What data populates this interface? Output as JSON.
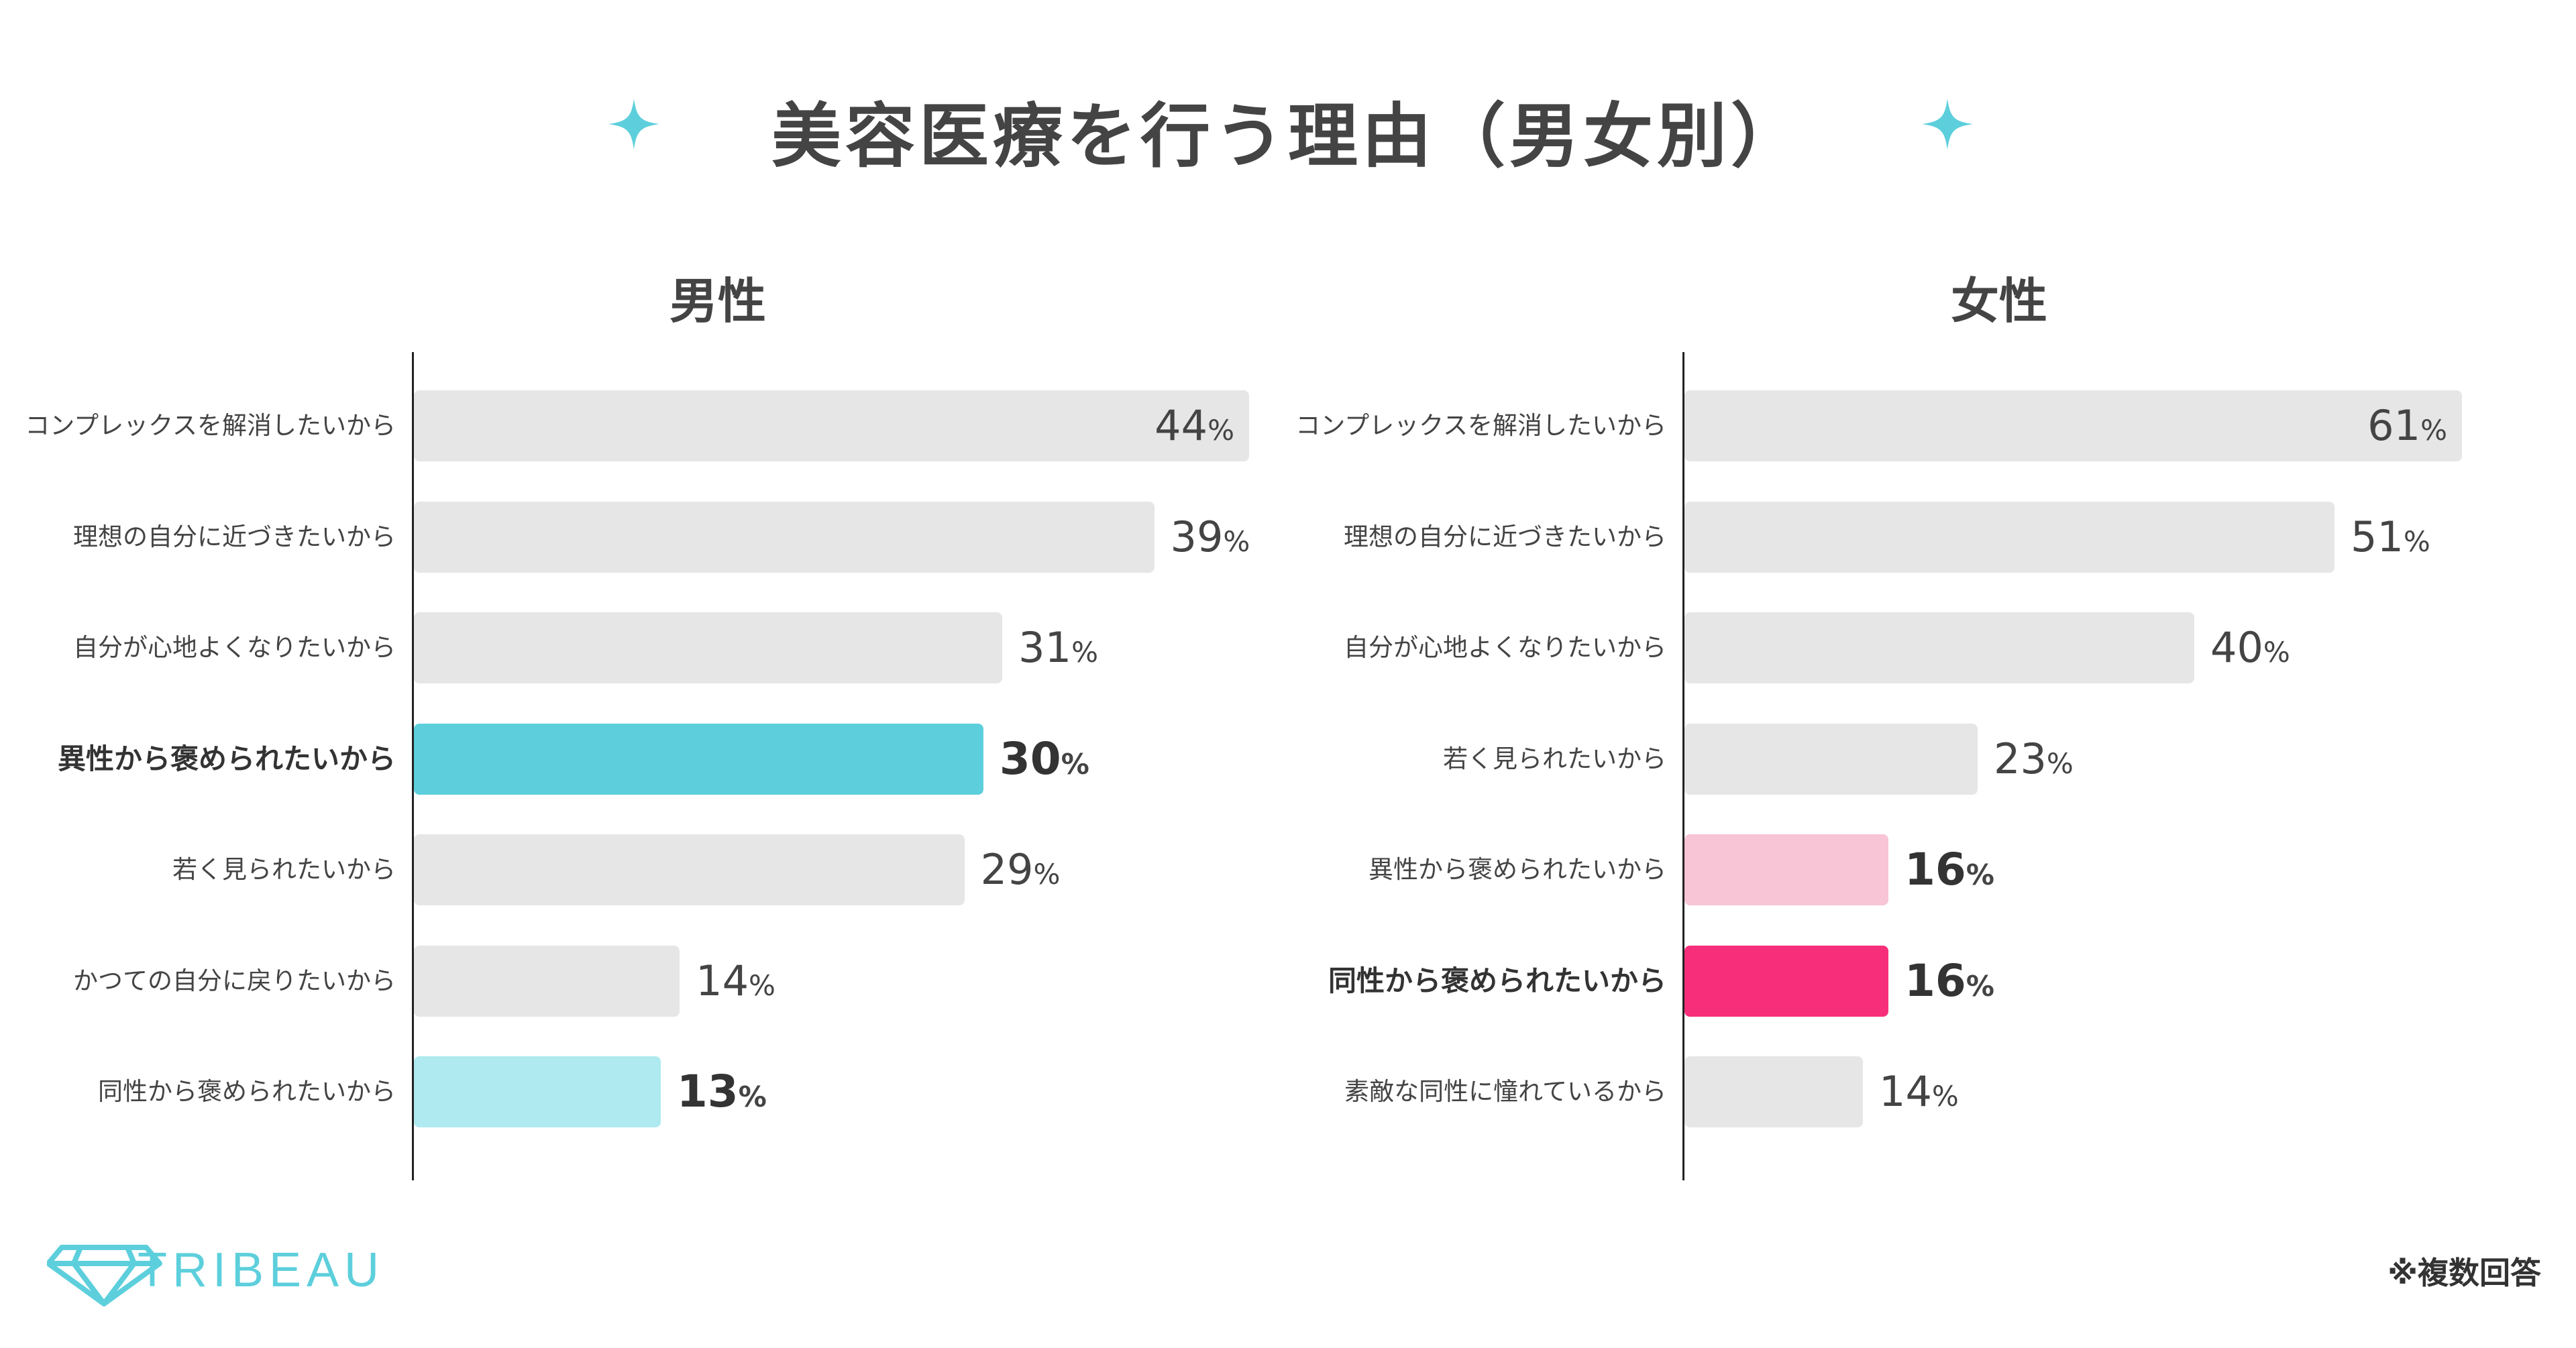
{
  "title": "美容医療を行う理由（男女別）",
  "footnote": "※複数回答",
  "brand": "TRIBEAU",
  "colors": {
    "sparkle": "#5dcfdc",
    "bar_default": "#e6e6e6",
    "male_highlight": "#5dcfdc",
    "male_light": "#aeeaf0",
    "female_highlight": "#f72f7a",
    "female_light": "#f7c5d6",
    "brand": "#5dcfdc"
  },
  "chart_data": [
    {
      "type": "bar",
      "orientation": "horizontal",
      "title": "男性",
      "unit": "%",
      "categories": [
        "コンプレックスを解消したいから",
        "理想の自分に近づきたいから",
        "自分が心地よくなりたいから",
        "異性から褒められたいから",
        "若く見られたいから",
        "かつての自分に戻りたいから",
        "同性から褒められたいから"
      ],
      "values": [
        44,
        39,
        31,
        30,
        29,
        14,
        13
      ],
      "highlight": [
        null,
        null,
        null,
        "strong",
        null,
        null,
        "light"
      ],
      "xlim": [
        0,
        44
      ]
    },
    {
      "type": "bar",
      "orientation": "horizontal",
      "title": "女性",
      "unit": "%",
      "categories": [
        "コンプレックスを解消したいから",
        "理想の自分に近づきたいから",
        "自分が心地よくなりたいから",
        "若く見られたいから",
        "異性から褒められたいから",
        "同性から褒められたいから",
        "素敵な同性に憧れているから"
      ],
      "values": [
        61,
        51,
        40,
        23,
        16,
        16,
        14
      ],
      "highlight": [
        null,
        null,
        null,
        null,
        "light",
        "strong",
        null
      ],
      "xlim": [
        0,
        61
      ]
    }
  ]
}
